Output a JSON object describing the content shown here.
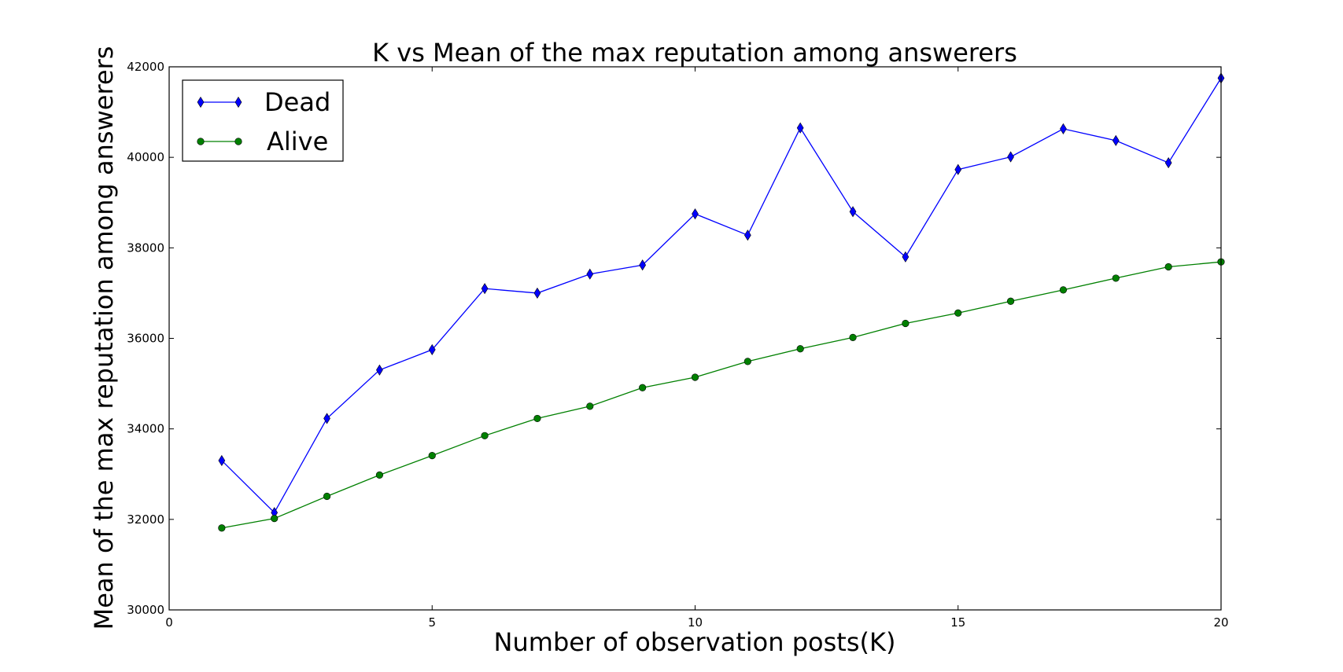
{
  "chart_data": {
    "type": "line",
    "title": "K vs Mean of the max reputation among answerers",
    "xlabel": "Number of observation posts(K)",
    "ylabel": "Mean of the max reputation among answerers",
    "xlim": [
      0,
      20
    ],
    "ylim": [
      30000,
      42000
    ],
    "xticks": [
      0,
      5,
      10,
      15,
      20
    ],
    "yticks": [
      30000,
      32000,
      34000,
      36000,
      38000,
      40000,
      42000
    ],
    "grid": false,
    "legend_position": "top-left",
    "x": [
      1,
      2,
      3,
      4,
      5,
      6,
      7,
      8,
      9,
      10,
      11,
      12,
      13,
      14,
      15,
      16,
      17,
      18,
      19,
      20
    ],
    "series": [
      {
        "name": "Dead",
        "color": "#0000ff",
        "marker": "diamond",
        "values": [
          33300,
          32150,
          34230,
          35300,
          35750,
          37100,
          37000,
          37420,
          37620,
          38750,
          38280,
          40650,
          38800,
          37800,
          39730,
          40010,
          40630,
          40370,
          39880,
          41750
        ]
      },
      {
        "name": "Alive",
        "color": "#008000",
        "marker": "circle",
        "values": [
          31810,
          32020,
          32510,
          32980,
          33410,
          33850,
          34230,
          34500,
          34910,
          35140,
          35490,
          35770,
          36020,
          36330,
          36560,
          36820,
          37070,
          37330,
          37580,
          37690
        ]
      }
    ]
  }
}
